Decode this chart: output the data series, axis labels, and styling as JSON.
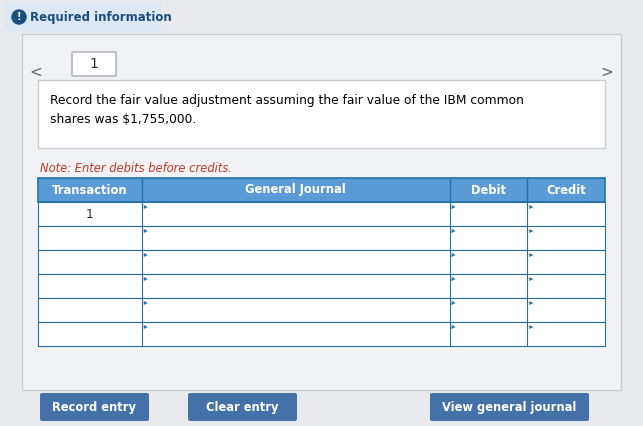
{
  "bg_color": "#e8eaed",
  "required_info_bg": "#dce8f5",
  "required_info_text": "Required information",
  "required_info_color": "#1a4f7a",
  "icon_color": "#1a4f7a",
  "tab_text": "1",
  "description_line1": "Record the fair value adjustment assuming the fair value of the IBM common",
  "description_line2": "shares was $1,755,000.",
  "note_text": "Note: Enter debits before credits.",
  "note_color": "#c0392b",
  "table_header_bg": "#5b9bd5",
  "table_header_text_color": "#ffffff",
  "table_col_headers": [
    "Transaction",
    "General Journal",
    "Debit",
    "Credit"
  ],
  "table_row_count": 6,
  "table_first_row_val": "1",
  "table_border_color": "#2471a3",
  "table_row_bg": "#ffffff",
  "btn_bg": "#4472a8",
  "btn_text_color": "#ffffff",
  "btn_labels": [
    "Record entry",
    "Clear entry",
    "View general journal"
  ],
  "arrow_color": "#666666",
  "cell_indicator_color": "#2471a3",
  "panel_bg": "#f0f2f5",
  "panel_border": "#cccccc",
  "desc_border": "#cccccc",
  "tab_border": "#aaaaaa"
}
